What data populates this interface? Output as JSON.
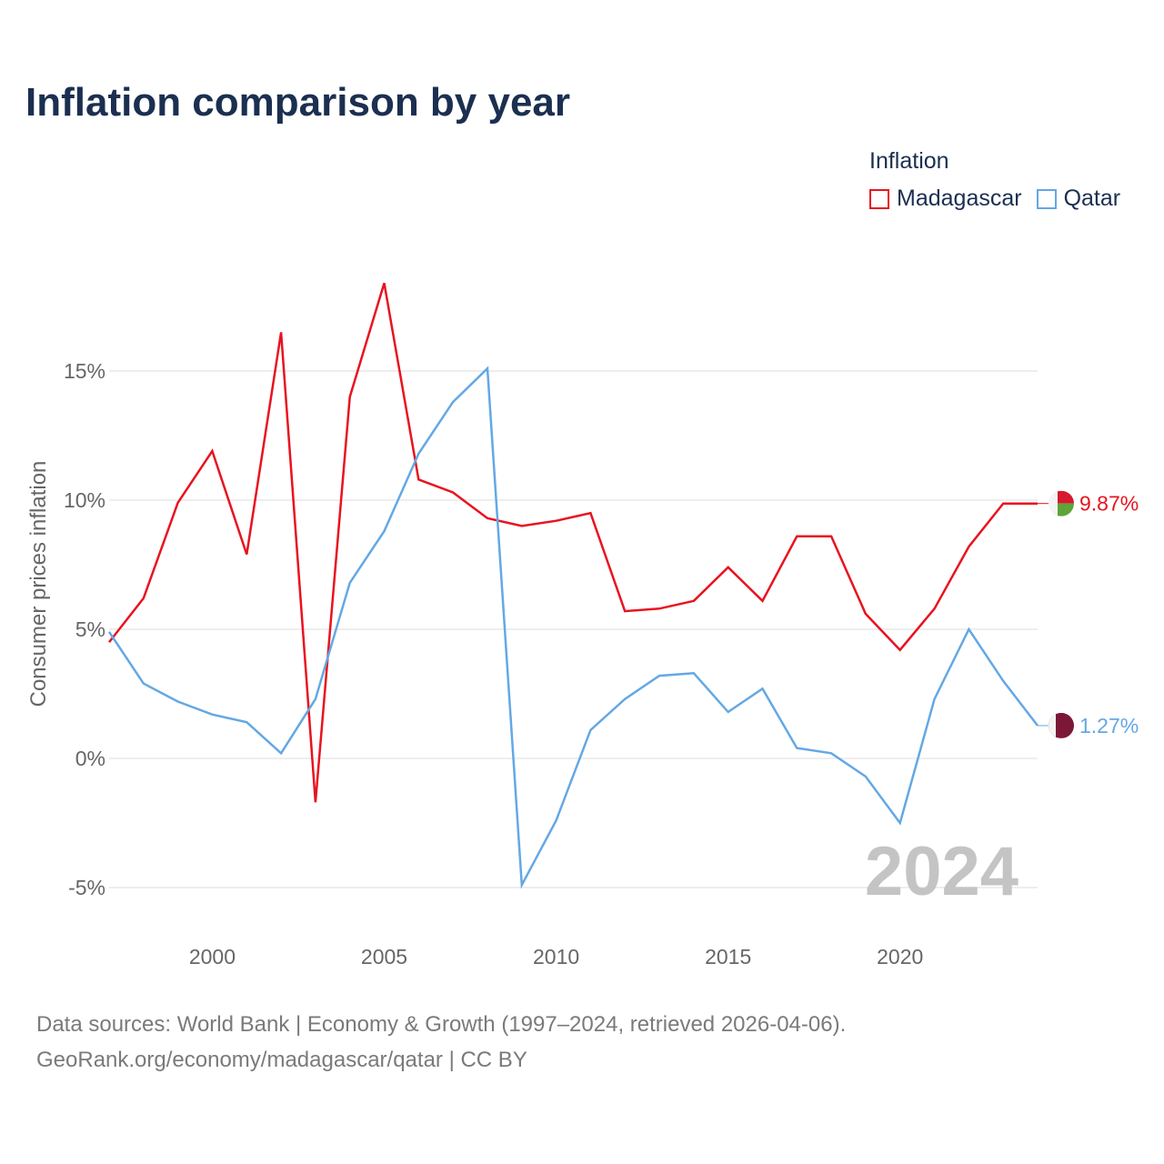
{
  "title": "Inflation comparison by year",
  "legend": {
    "title": "Inflation",
    "items": [
      {
        "name": "Madagascar",
        "color": "#e8131f"
      },
      {
        "name": "Qatar",
        "color": "#64a8e4"
      }
    ]
  },
  "source": {
    "line1": "Data sources: World Bank | Economy & Growth (1997–2024, retrieved 2026-04-06).",
    "line2": "GeoRank.org/economy/madagascar/qatar | CC BY"
  },
  "chart_data": {
    "type": "line",
    "title": "Inflation comparison by year",
    "xlabel": "",
    "ylabel": "Consumer prices inflation",
    "xlim": [
      1997,
      2024
    ],
    "ylim": [
      -5,
      15
    ],
    "x_ticks": [
      2000,
      2005,
      2010,
      2015,
      2020
    ],
    "x_tick_labels": [
      "2000",
      "2005",
      "2010",
      "2015",
      "2020"
    ],
    "y_ticks": [
      15,
      10,
      5,
      0,
      -5
    ],
    "y_tick_labels": [
      "15%",
      "10%",
      "5%",
      "0%",
      "-5%"
    ],
    "grid": true,
    "year_label": "2024",
    "x": [
      1997,
      1998,
      1999,
      2000,
      2001,
      2002,
      2003,
      2004,
      2005,
      2006,
      2007,
      2008,
      2009,
      2010,
      2011,
      2012,
      2013,
      2014,
      2015,
      2016,
      2017,
      2018,
      2019,
      2020,
      2021,
      2022,
      2023,
      2024
    ],
    "series": [
      {
        "name": "Madagascar",
        "color": "#e8131f",
        "flag": "madagascar-flag",
        "end_label": "9.87%",
        "values": [
          4.5,
          6.2,
          9.9,
          11.9,
          7.9,
          16.5,
          -1.7,
          14.0,
          18.4,
          10.8,
          10.3,
          9.3,
          9.0,
          9.2,
          9.5,
          5.7,
          5.8,
          6.1,
          7.4,
          6.1,
          8.6,
          8.6,
          5.6,
          4.2,
          5.8,
          8.2,
          9.87,
          9.87
        ]
      },
      {
        "name": "Qatar",
        "color": "#64a8e4",
        "flag": "qatar-flag",
        "end_label": "1.27%",
        "values": [
          4.9,
          2.9,
          2.2,
          1.7,
          1.4,
          0.2,
          2.3,
          6.8,
          8.8,
          11.8,
          13.8,
          15.1,
          -4.9,
          -2.4,
          1.1,
          2.3,
          3.2,
          3.3,
          1.8,
          2.7,
          0.4,
          0.2,
          -0.7,
          -2.5,
          2.3,
          5.0,
          3.0,
          1.27
        ]
      }
    ]
  }
}
